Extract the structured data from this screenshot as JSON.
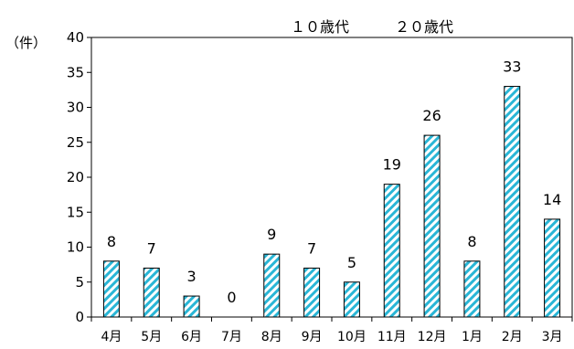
{
  "chart_data": {
    "type": "bar",
    "categories": [
      "4月",
      "5月",
      "6月",
      "7月",
      "8月",
      "9月",
      "10月",
      "11月",
      "12月",
      "1月",
      "2月",
      "3月"
    ],
    "values": [
      8,
      7,
      3,
      0,
      9,
      7,
      5,
      19,
      26,
      8,
      33,
      14
    ],
    "data_labels": [
      "8",
      "7",
      "3",
      "0",
      "9",
      "7",
      "5",
      "19",
      "26",
      "8",
      "33",
      "14"
    ],
    "y_unit": "（件）",
    "legend": [
      "１０歳代",
      "２０歳代"
    ],
    "ylim": [
      0,
      40
    ],
    "yticks": [
      0,
      5,
      10,
      15,
      20,
      25,
      30,
      35,
      40
    ],
    "ytick_labels": [
      "0",
      "5",
      "10",
      "15",
      "20",
      "25",
      "30",
      "35",
      "40"
    ],
    "grid": false,
    "bar_color": "#29b6d6",
    "bar_pattern": "diagonal-hatch"
  }
}
